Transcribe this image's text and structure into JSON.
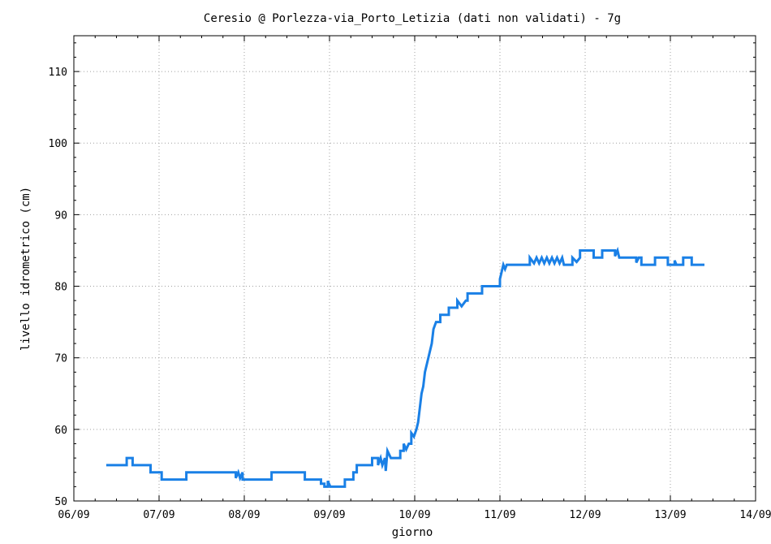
{
  "chart_data": {
    "type": "line",
    "title": "Ceresio @ Porlezza-via_Porto_Letizia (dati non validati) - 7g",
    "xlabel": "giorno",
    "ylabel": "livello idrometrico (cm)",
    "xlim": [
      0,
      8
    ],
    "ylim": [
      50,
      115
    ],
    "x_ticks": [
      0,
      1,
      2,
      3,
      4,
      5,
      6,
      7,
      8
    ],
    "x_tick_labels": [
      "06/09",
      "07/09",
      "08/09",
      "09/09",
      "10/09",
      "11/09",
      "12/09",
      "13/09",
      "14/09"
    ],
    "y_ticks": [
      50,
      60,
      70,
      80,
      90,
      100,
      110
    ],
    "y_tick_labels": [
      "50",
      "60",
      "70",
      "80",
      "90",
      "100",
      "110"
    ],
    "x_minor_step": 0.25,
    "y_minor_step": 2,
    "grid": true,
    "line_color": "#1a80e6",
    "series": [
      {
        "name": "",
        "points": [
          [
            0.38,
            55
          ],
          [
            0.62,
            55
          ],
          [
            0.62,
            56
          ],
          [
            0.69,
            56
          ],
          [
            0.69,
            55
          ],
          [
            0.9,
            55
          ],
          [
            0.9,
            54
          ],
          [
            1.03,
            54
          ],
          [
            1.03,
            53
          ],
          [
            1.32,
            53
          ],
          [
            1.32,
            54
          ],
          [
            1.9,
            54
          ],
          [
            1.9,
            53.2
          ],
          [
            1.93,
            54
          ],
          [
            1.95,
            53.2
          ],
          [
            1.98,
            54
          ],
          [
            1.98,
            53
          ],
          [
            2.32,
            53
          ],
          [
            2.32,
            54
          ],
          [
            2.71,
            54
          ],
          [
            2.71,
            53
          ],
          [
            2.9,
            53
          ],
          [
            2.9,
            52.4
          ],
          [
            2.94,
            52.4
          ],
          [
            2.94,
            52
          ],
          [
            2.98,
            52
          ],
          [
            2.98,
            52.8
          ],
          [
            3.01,
            52
          ],
          [
            3.18,
            52
          ],
          [
            3.18,
            53
          ],
          [
            3.28,
            53
          ],
          [
            3.28,
            54
          ],
          [
            3.32,
            54
          ],
          [
            3.32,
            55
          ],
          [
            3.5,
            55
          ],
          [
            3.5,
            56
          ],
          [
            3.57,
            56
          ],
          [
            3.57,
            55
          ],
          [
            3.6,
            56
          ],
          [
            3.62,
            55
          ],
          [
            3.65,
            56
          ],
          [
            3.66,
            54.2
          ],
          [
            3.68,
            57
          ],
          [
            3.72,
            56
          ],
          [
            3.83,
            56
          ],
          [
            3.83,
            57
          ],
          [
            3.87,
            57
          ],
          [
            3.87,
            58
          ],
          [
            3.9,
            57.2
          ],
          [
            3.93,
            58
          ],
          [
            3.96,
            58
          ],
          [
            3.96,
            59.5
          ],
          [
            3.99,
            59
          ],
          [
            4.02,
            60
          ],
          [
            4.04,
            61
          ],
          [
            4.06,
            63
          ],
          [
            4.08,
            65
          ],
          [
            4.1,
            66
          ],
          [
            4.12,
            68
          ],
          [
            4.14,
            69
          ],
          [
            4.16,
            70
          ],
          [
            4.18,
            71
          ],
          [
            4.2,
            72
          ],
          [
            4.22,
            74
          ],
          [
            4.25,
            75
          ],
          [
            4.3,
            75
          ],
          [
            4.3,
            76
          ],
          [
            4.4,
            76
          ],
          [
            4.4,
            77
          ],
          [
            4.5,
            77
          ],
          [
            4.5,
            78
          ],
          [
            4.55,
            77.2
          ],
          [
            4.6,
            78
          ],
          [
            4.62,
            78
          ],
          [
            4.62,
            79
          ],
          [
            4.79,
            79
          ],
          [
            4.79,
            80
          ],
          [
            4.85,
            80
          ],
          [
            4.85,
            80
          ],
          [
            5.0,
            80
          ],
          [
            5.0,
            81
          ],
          [
            5.02,
            82
          ],
          [
            5.04,
            83
          ],
          [
            5.06,
            82.4
          ],
          [
            5.08,
            83
          ],
          [
            5.35,
            83
          ],
          [
            5.35,
            84
          ],
          [
            5.4,
            83.2
          ],
          [
            5.43,
            84
          ],
          [
            5.46,
            83.2
          ],
          [
            5.49,
            84
          ],
          [
            5.52,
            83.2
          ],
          [
            5.55,
            84
          ],
          [
            5.58,
            83.2
          ],
          [
            5.61,
            84
          ],
          [
            5.64,
            83.2
          ],
          [
            5.67,
            84
          ],
          [
            5.7,
            83.2
          ],
          [
            5.73,
            84
          ],
          [
            5.75,
            83
          ],
          [
            5.85,
            83
          ],
          [
            5.85,
            84
          ],
          [
            5.9,
            83.4
          ],
          [
            5.94,
            84
          ],
          [
            5.94,
            85
          ],
          [
            6.1,
            85
          ],
          [
            6.1,
            84
          ],
          [
            6.2,
            84
          ],
          [
            6.2,
            85
          ],
          [
            6.35,
            85
          ],
          [
            6.35,
            84.2
          ],
          [
            6.38,
            85
          ],
          [
            6.4,
            84
          ],
          [
            6.6,
            84
          ],
          [
            6.6,
            83.3
          ],
          [
            6.63,
            84
          ],
          [
            6.66,
            84
          ],
          [
            6.66,
            83
          ],
          [
            6.82,
            83
          ],
          [
            6.82,
            84
          ],
          [
            6.97,
            84
          ],
          [
            6.97,
            83
          ],
          [
            7.05,
            83
          ],
          [
            7.05,
            83.6
          ],
          [
            7.07,
            83
          ],
          [
            7.15,
            83
          ],
          [
            7.15,
            84
          ],
          [
            7.25,
            84
          ],
          [
            7.25,
            83
          ],
          [
            7.4,
            83
          ]
        ]
      }
    ]
  }
}
